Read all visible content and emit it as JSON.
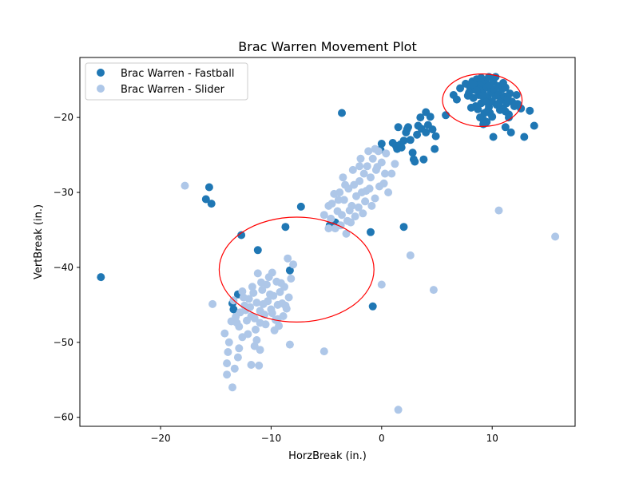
{
  "chart_data": {
    "type": "scatter",
    "title": "Brac Warren Movement Plot",
    "xlabel": "HorzBreak (in.)",
    "ylabel": "VertBreak (in.)",
    "xlim": [
      -27.3,
      17.5
    ],
    "ylim": [
      -61.2,
      -12.0
    ],
    "xticks": [
      -20,
      -10,
      0,
      10
    ],
    "yticks": [
      -20,
      -30,
      -40,
      -50,
      -60
    ],
    "grid": false,
    "legend": "top-left",
    "series": [
      {
        "name": "Brac Warren - Fastball",
        "color": "#1f77b4",
        "points": [
          [
            -25.4,
            -41.3
          ],
          [
            -15.9,
            -30.9
          ],
          [
            -15.6,
            -29.3
          ],
          [
            -15.4,
            -31.5
          ],
          [
            -12.7,
            -35.7
          ],
          [
            -11.2,
            -37.7
          ],
          [
            -8.7,
            -34.6
          ],
          [
            -7.3,
            -31.9
          ],
          [
            -13.4,
            -45.6
          ],
          [
            -13.5,
            -44.8
          ],
          [
            -13.0,
            -43.6
          ],
          [
            -8.3,
            -40.4
          ],
          [
            -3.6,
            -19.4
          ],
          [
            -1.0,
            -35.3
          ],
          [
            -0.8,
            -45.2
          ],
          [
            2.0,
            -34.6
          ],
          [
            -4.7,
            -34.4
          ],
          [
            -4.2,
            -34.0
          ],
          [
            -0.1,
            -24.3
          ],
          [
            0.0,
            -23.5
          ],
          [
            1.0,
            -23.4
          ],
          [
            1.3,
            -23.8
          ],
          [
            1.4,
            -24.2
          ],
          [
            1.5,
            -21.3
          ],
          [
            1.7,
            -23.6
          ],
          [
            1.8,
            -24.0
          ],
          [
            2.0,
            -23.1
          ],
          [
            2.2,
            -22.0
          ],
          [
            2.3,
            -21.6
          ],
          [
            2.4,
            -21.3
          ],
          [
            2.6,
            -23.0
          ],
          [
            2.8,
            -24.7
          ],
          [
            2.9,
            -25.6
          ],
          [
            3.0,
            -25.9
          ],
          [
            3.3,
            -21.1
          ],
          [
            3.5,
            -20.0
          ],
          [
            3.6,
            -21.5
          ],
          [
            3.8,
            -25.6
          ],
          [
            4.0,
            -19.3
          ],
          [
            4.2,
            -21.0
          ],
          [
            4.4,
            -19.9
          ],
          [
            4.6,
            -21.6
          ],
          [
            4.8,
            -24.2
          ],
          [
            4.9,
            -22.5
          ],
          [
            4.0,
            -22.0
          ],
          [
            3.2,
            -22.3
          ],
          [
            5.8,
            -19.7
          ],
          [
            6.5,
            -17.0
          ],
          [
            6.8,
            -17.6
          ],
          [
            7.1,
            -16.1
          ],
          [
            7.6,
            -15.5
          ],
          [
            7.8,
            -17.1
          ],
          [
            8.0,
            -16.0
          ],
          [
            8.2,
            -15.2
          ],
          [
            8.3,
            -17.4
          ],
          [
            8.4,
            -16.3
          ],
          [
            8.5,
            -18.5
          ],
          [
            8.6,
            -14.9
          ],
          [
            8.7,
            -15.8
          ],
          [
            8.8,
            -17.0
          ],
          [
            8.9,
            -16.2
          ],
          [
            9.0,
            -18.1
          ],
          [
            9.1,
            -15.4
          ],
          [
            9.2,
            -16.8
          ],
          [
            9.3,
            -17.6
          ],
          [
            9.3,
            -19.4
          ],
          [
            9.4,
            -15.0
          ],
          [
            9.5,
            -16.0
          ],
          [
            9.6,
            -17.3
          ],
          [
            9.7,
            -18.6
          ],
          [
            9.7,
            -14.6
          ],
          [
            9.8,
            -15.7
          ],
          [
            9.9,
            -16.6
          ],
          [
            10.0,
            -17.9
          ],
          [
            10.0,
            -19.9
          ],
          [
            10.1,
            -15.2
          ],
          [
            10.2,
            -16.3
          ],
          [
            10.3,
            -17.1
          ],
          [
            10.4,
            -18.3
          ],
          [
            10.5,
            -15.8
          ],
          [
            10.6,
            -16.9
          ],
          [
            10.7,
            -19.0
          ],
          [
            10.8,
            -17.6
          ],
          [
            10.9,
            -16.2
          ],
          [
            11.0,
            -18.8
          ],
          [
            11.1,
            -17.2
          ],
          [
            11.2,
            -16.0
          ],
          [
            11.3,
            -18.1
          ],
          [
            11.4,
            -17.4
          ],
          [
            11.5,
            -19.6
          ],
          [
            11.6,
            -16.8
          ],
          [
            11.8,
            -17.9
          ],
          [
            12.0,
            -18.5
          ],
          [
            12.2,
            -17.0
          ],
          [
            8.7,
            -18.9
          ],
          [
            9.2,
            -20.3
          ],
          [
            9.5,
            -20.6
          ],
          [
            8.9,
            -20.0
          ],
          [
            10.1,
            -14.9
          ],
          [
            9.0,
            -14.7
          ],
          [
            8.1,
            -18.7
          ],
          [
            9.6,
            -19.1
          ],
          [
            7.9,
            -16.7
          ],
          [
            8.3,
            -15.6
          ],
          [
            9.4,
            -17.9
          ],
          [
            10.6,
            -18.1
          ],
          [
            11.0,
            -15.4
          ],
          [
            9.8,
            -19.4
          ],
          [
            8.6,
            -16.4
          ],
          [
            10.3,
            -14.6
          ],
          [
            11.2,
            -19.2
          ],
          [
            9.1,
            -17.1
          ],
          [
            10.1,
            -22.6
          ],
          [
            11.2,
            -21.3
          ],
          [
            11.7,
            -22.0
          ],
          [
            12.3,
            -18.2
          ],
          [
            12.6,
            -18.8
          ],
          [
            12.9,
            -22.6
          ],
          [
            13.4,
            -19.1
          ],
          [
            13.8,
            -21.1
          ],
          [
            11.5,
            -20.0
          ],
          [
            9.2,
            -20.9
          ]
        ]
      },
      {
        "name": "Brac Warren - Slider",
        "color": "#aec7e8",
        "points": [
          [
            -17.8,
            -29.1
          ],
          [
            -15.3,
            -44.9
          ],
          [
            -14.2,
            -48.8
          ],
          [
            -14.0,
            -54.3
          ],
          [
            -13.5,
            -56.0
          ],
          [
            -13.8,
            -50.0
          ],
          [
            -13.9,
            -51.3
          ],
          [
            -14.0,
            -52.8
          ],
          [
            -13.3,
            -53.5
          ],
          [
            -13.0,
            -52.0
          ],
          [
            -12.9,
            -50.8
          ],
          [
            -12.6,
            -49.3
          ],
          [
            -11.8,
            -53.0
          ],
          [
            -11.5,
            -50.5
          ],
          [
            -11.3,
            -49.7
          ],
          [
            -11.0,
            -51.0
          ],
          [
            -11.1,
            -53.1
          ],
          [
            -13.6,
            -47.2
          ],
          [
            -13.2,
            -46.6
          ],
          [
            -12.9,
            -47.9
          ],
          [
            -12.4,
            -45.1
          ],
          [
            -12.0,
            -44.2
          ],
          [
            -11.6,
            -43.4
          ],
          [
            -11.3,
            -44.7
          ],
          [
            -11.0,
            -45.8
          ],
          [
            -10.8,
            -43.0
          ],
          [
            -10.6,
            -46.3
          ],
          [
            -10.3,
            -44.5
          ],
          [
            -10.0,
            -45.6
          ],
          [
            -9.8,
            -43.8
          ],
          [
            -9.6,
            -47.0
          ],
          [
            -9.4,
            -45.0
          ],
          [
            -9.2,
            -43.3
          ],
          [
            -9.0,
            -44.8
          ],
          [
            -8.8,
            -42.6
          ],
          [
            -8.6,
            -45.5
          ],
          [
            -8.4,
            -44.0
          ],
          [
            -8.2,
            -41.5
          ],
          [
            -8.0,
            -39.6
          ],
          [
            -8.5,
            -38.8
          ],
          [
            -10.2,
            -41.3
          ],
          [
            -9.9,
            -40.7
          ],
          [
            -11.2,
            -40.8
          ],
          [
            -12.5,
            -44.0
          ],
          [
            -12.2,
            -47.1
          ],
          [
            -11.8,
            -46.5
          ],
          [
            -12.8,
            -46.0
          ],
          [
            -13.4,
            -44.4
          ],
          [
            -9.3,
            -47.8
          ],
          [
            -8.9,
            -46.5
          ],
          [
            -10.5,
            -47.6
          ],
          [
            -11.4,
            -48.3
          ],
          [
            -12.1,
            -48.9
          ],
          [
            -8.3,
            -50.3
          ],
          [
            -9.1,
            -42.1
          ],
          [
            -10.9,
            -42.0
          ],
          [
            -11.7,
            -42.6
          ],
          [
            -12.6,
            -43.2
          ],
          [
            -9.7,
            -48.4
          ],
          [
            -10.4,
            -42.3
          ],
          [
            -9.5,
            -41.9
          ],
          [
            -13.1,
            -47.4
          ],
          [
            -11.9,
            -45.3
          ],
          [
            -10.7,
            -44.9
          ],
          [
            -9.9,
            -46.1
          ],
          [
            -11.5,
            -46.8
          ],
          [
            -12.3,
            -45.7
          ],
          [
            -10.1,
            -43.6
          ],
          [
            -8.7,
            -45.1
          ],
          [
            -9.4,
            -46.9
          ],
          [
            -11.0,
            -47.4
          ],
          [
            -5.2,
            -51.2
          ],
          [
            -5.2,
            -33.0
          ],
          [
            -4.8,
            -34.8
          ],
          [
            -4.6,
            -33.5
          ],
          [
            -4.5,
            -31.5
          ],
          [
            -4.2,
            -34.8
          ],
          [
            -4.0,
            -32.5
          ],
          [
            -3.8,
            -30.0
          ],
          [
            -3.6,
            -33.0
          ],
          [
            -3.4,
            -31.0
          ],
          [
            -3.2,
            -35.5
          ],
          [
            -3.0,
            -29.5
          ],
          [
            -2.8,
            -34.0
          ],
          [
            -2.7,
            -31.8
          ],
          [
            -2.5,
            -29.0
          ],
          [
            -2.3,
            -30.5
          ],
          [
            -2.1,
            -32.0
          ],
          [
            -2.0,
            -28.5
          ],
          [
            -1.8,
            -30.0
          ],
          [
            -1.6,
            -27.5
          ],
          [
            -1.5,
            -31.2
          ],
          [
            -1.3,
            -26.5
          ],
          [
            -1.1,
            -29.5
          ],
          [
            -1.0,
            -28.0
          ],
          [
            -0.8,
            -25.5
          ],
          [
            -0.6,
            -30.8
          ],
          [
            -0.5,
            -27.0
          ],
          [
            -0.3,
            -24.5
          ],
          [
            -0.2,
            -29.2
          ],
          [
            0.0,
            -26.0
          ],
          [
            0.2,
            -28.8
          ],
          [
            0.4,
            -24.8
          ],
          [
            0.6,
            -30.0
          ],
          [
            0.9,
            -27.5
          ],
          [
            1.2,
            -26.2
          ],
          [
            -3.5,
            -28.0
          ],
          [
            -2.6,
            -27.0
          ],
          [
            -1.9,
            -25.5
          ],
          [
            -1.2,
            -24.5
          ],
          [
            -0.6,
            -24.2
          ],
          [
            -3.9,
            -31.0
          ],
          [
            -4.3,
            -30.2
          ],
          [
            -2.4,
            -33.2
          ],
          [
            -1.7,
            -32.8
          ],
          [
            -3.1,
            -33.8
          ],
          [
            -0.9,
            -31.8
          ],
          [
            0.3,
            -27.5
          ],
          [
            -2.0,
            -26.5
          ],
          [
            -3.3,
            -29.0
          ],
          [
            -4.8,
            -31.8
          ],
          [
            -0.4,
            -26.6
          ],
          [
            -1.4,
            -29.8
          ],
          [
            -2.9,
            -32.4
          ],
          [
            -3.7,
            -34.4
          ],
          [
            0.0,
            -42.3
          ],
          [
            1.5,
            -59.0
          ],
          [
            2.6,
            -38.4
          ],
          [
            4.7,
            -43.0
          ],
          [
            10.6,
            -32.4
          ],
          [
            15.7,
            -35.9
          ]
        ]
      }
    ],
    "annotations": [
      {
        "type": "ellipse",
        "color": "#ff0000",
        "center": [
          -7.7,
          -40.3
        ],
        "width": 14.0,
        "height": 14.0
      },
      {
        "type": "ellipse",
        "color": "#ff0000",
        "center": [
          9.1,
          -17.7
        ],
        "width": 7.2,
        "height": 7.0
      }
    ]
  }
}
